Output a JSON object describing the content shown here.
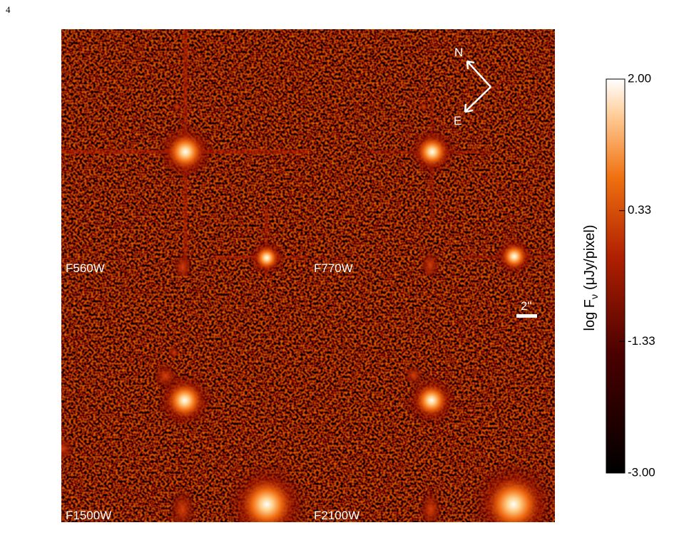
{
  "page_number": "4",
  "panels": [
    {
      "label": "F560W"
    },
    {
      "label": "F770W"
    },
    {
      "label": "F1500W"
    },
    {
      "label": "F2100W"
    }
  ],
  "compass": {
    "north": "N",
    "east": "E"
  },
  "scale_bar": {
    "label": "2\""
  },
  "colorbar": {
    "label_main": "log F",
    "label_sub": "ν",
    "label_unit": "(μJy/pixel)",
    "range": [
      -3,
      2
    ],
    "ticks": [
      {
        "value": 2,
        "label": "2.00"
      },
      {
        "value": 0.33,
        "label": "0.33"
      },
      {
        "value": -1.33,
        "label": "-1.33"
      },
      {
        "value": -3,
        "label": "-3.00"
      }
    ]
  }
}
